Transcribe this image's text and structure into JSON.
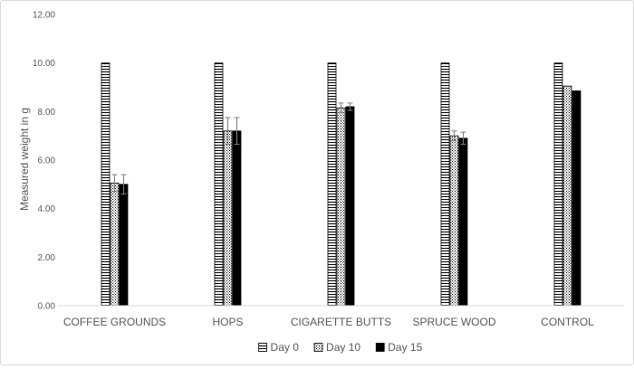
{
  "chart_data": {
    "type": "bar",
    "ylabel": "Measured weight in g",
    "ylim": [
      0,
      12
    ],
    "ytick_step": 2,
    "yticks": [
      "0.00",
      "2.00",
      "4.00",
      "6.00",
      "8.00",
      "10.00",
      "12.00"
    ],
    "grid": false,
    "legend_position": "bottom",
    "categories": [
      "COFFEE GROUNDS",
      "HOPS",
      "CIGARETTE BUTTS",
      "SPRUCE WOOD",
      "CONTROL"
    ],
    "series": [
      {
        "name": "Day 0",
        "pattern": "horizontal-lines",
        "values": [
          10.0,
          10.0,
          10.0,
          10.0,
          10.0
        ],
        "errors": [
          0,
          0,
          0,
          0,
          0
        ]
      },
      {
        "name": "Day 10",
        "pattern": "dotted-grid",
        "values": [
          5.05,
          7.2,
          8.15,
          7.0,
          9.05
        ],
        "errors": [
          0.35,
          0.55,
          0.2,
          0.2,
          0
        ]
      },
      {
        "name": "Day 15",
        "pattern": "solid",
        "values": [
          5.0,
          7.2,
          8.2,
          6.9,
          8.85
        ],
        "errors": [
          0.4,
          0.55,
          0.15,
          0.25,
          0
        ]
      }
    ],
    "colors": {
      "bar_fill": "#000000",
      "axis": "#d9d9d9",
      "text": "#595959"
    }
  }
}
